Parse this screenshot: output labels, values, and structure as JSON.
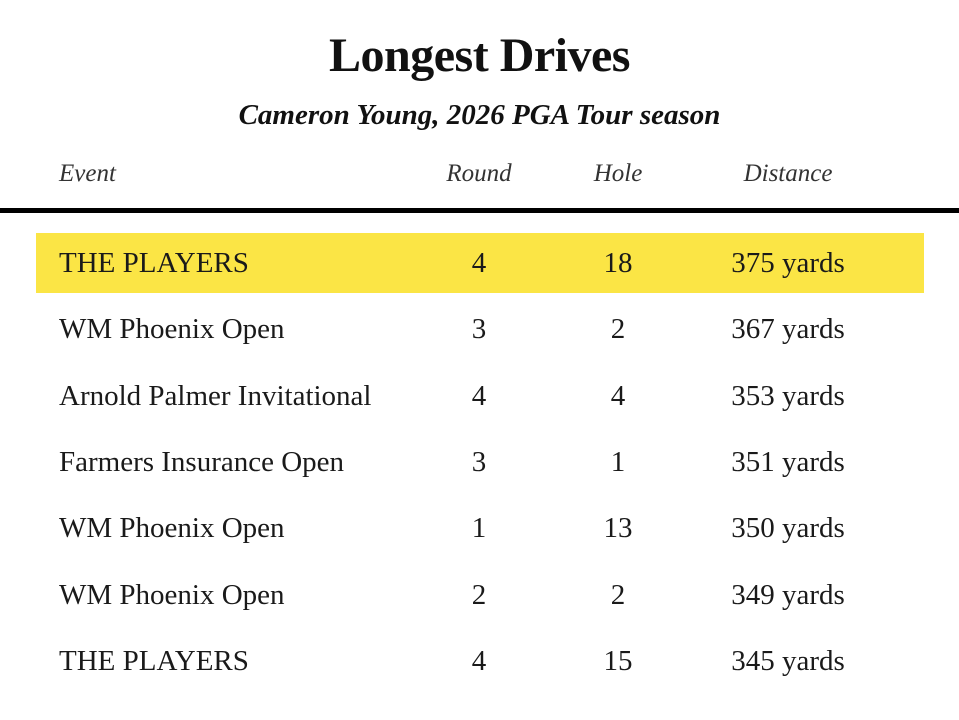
{
  "chart_data": {
    "type": "table",
    "title": "Longest Drives",
    "subtitle": "Cameron Young, 2026 PGA Tour season",
    "columns": [
      "Event",
      "Round",
      "Hole",
      "Distance"
    ],
    "rows": [
      {
        "event": "THE PLAYERS",
        "round": "4",
        "hole": "18",
        "distance": "375 yards",
        "highlight": true
      },
      {
        "event": "WM Phoenix Open",
        "round": "3",
        "hole": "2",
        "distance": "367 yards",
        "highlight": false
      },
      {
        "event": "Arnold Palmer Invitational",
        "round": "4",
        "hole": "4",
        "distance": "353 yards",
        "highlight": false
      },
      {
        "event": "Farmers Insurance Open",
        "round": "3",
        "hole": "1",
        "distance": "351 yards",
        "highlight": false
      },
      {
        "event": "WM Phoenix Open",
        "round": "1",
        "hole": "13",
        "distance": "350 yards",
        "highlight": false
      },
      {
        "event": "WM Phoenix Open",
        "round": "2",
        "hole": "2",
        "distance": "349 yards",
        "highlight": false
      },
      {
        "event": "THE PLAYERS",
        "round": "4",
        "hole": "15",
        "distance": "345 yards",
        "highlight": false
      }
    ],
    "highlight_color": "#fbe545"
  }
}
